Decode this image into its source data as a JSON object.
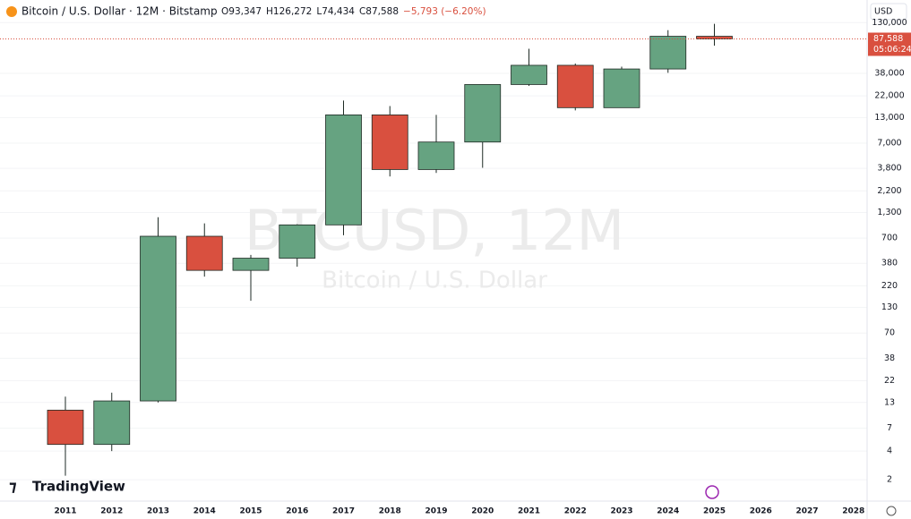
{
  "header": {
    "symbol": "Bitcoin / U.S. Dollar · 12M · Bitstamp",
    "ohlc": [
      "O93,347",
      "H126,272",
      "L74,434",
      "C87,588",
      "−5,793 (−6.20%)"
    ],
    "currency": "USD",
    "price_label": "87,588",
    "countdown": "05:06:24",
    "watermark": "BTCUSD, 12M",
    "watermark_sub": "Bitcoin / U.S. Dollar",
    "logo": "TradingView"
  },
  "chart_data": {
    "type": "candlestick",
    "categories": [
      "2011",
      "2012",
      "2013",
      "2014",
      "2015",
      "2016",
      "2017",
      "2018",
      "2019",
      "2020",
      "2021",
      "2022",
      "2023",
      "2024",
      "2025",
      "2026",
      "2027",
      "2028"
    ],
    "open": [
      10.8,
      4.7,
      13.5,
      732,
      320,
      430,
      964,
      13880,
      3690,
      7190,
      28990,
      46200,
      16530,
      42260,
      93347,
      null,
      null,
      null
    ],
    "high": [
      15,
      16.5,
      1160,
      1000,
      465,
      980,
      19666,
      17200,
      13880,
      29000,
      69000,
      48200,
      44700,
      108300,
      126272,
      null,
      null,
      null
    ],
    "low": [
      2.2,
      4,
      13,
      275,
      153,
      350,
      750,
      3120,
      3400,
      3850,
      28000,
      15480,
      16500,
      38500,
      74434,
      null,
      null,
      null
    ],
    "close": [
      4.7,
      13.5,
      732,
      320,
      430,
      964,
      13880,
      3690,
      7190,
      28990,
      46200,
      16530,
      42260,
      93347,
      87588,
      null,
      null,
      null
    ],
    "up_color": "#66a381",
    "down_color": "#d9503f",
    "log_scale": true,
    "ylim": [
      1.19,
      225000
    ],
    "yticks": [
      2,
      4,
      7,
      13,
      22,
      38,
      70,
      130,
      220,
      380,
      700,
      {
        "value": 1300,
        "label": "1,300"
      },
      {
        "value": 2200,
        "label": "2,200"
      },
      {
        "value": 3800,
        "label": "3,800"
      },
      {
        "value": 7000,
        "label": "7,000"
      },
      {
        "value": 13000,
        "label": "13,000"
      },
      {
        "value": 22000,
        "label": "22,000"
      },
      {
        "value": 38000,
        "label": "38,000"
      },
      {
        "value": 130000,
        "label": "130,000"
      }
    ],
    "grid": true
  }
}
